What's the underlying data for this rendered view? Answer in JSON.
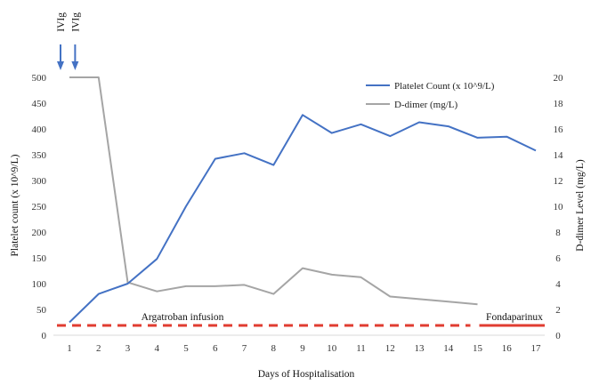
{
  "chart_data": {
    "type": "line",
    "xlabel": "Days of Hospitalisation",
    "ylabel_left": "Platelet count (x 10^9/L)",
    "ylabel_right": "D-dimer Level (mg/L)",
    "x": [
      1,
      2,
      3,
      4,
      5,
      6,
      7,
      8,
      9,
      10,
      11,
      12,
      13,
      14,
      15,
      16,
      17
    ],
    "y_left_lim": [
      0,
      500
    ],
    "y_left_ticks": [
      0,
      50,
      100,
      150,
      200,
      250,
      300,
      350,
      400,
      450,
      500
    ],
    "y_right_lim": [
      0,
      20
    ],
    "y_right_ticks": [
      0,
      2,
      4,
      6,
      8,
      10,
      12,
      14,
      16,
      18,
      20
    ],
    "grid": false,
    "legend_position": "top-right",
    "series": [
      {
        "name": "Platelet Count (x 10^9/L)",
        "axis": "left",
        "color": "#4472C4",
        "x": [
          1,
          2,
          3,
          4,
          5,
          6,
          7,
          8,
          9,
          10,
          11,
          12,
          13,
          14,
          15,
          16,
          17
        ],
        "values": [
          25,
          80,
          100,
          148,
          250,
          342,
          353,
          330,
          427,
          392,
          409,
          386,
          413,
          405,
          383,
          385,
          358
        ]
      },
      {
        "name": "D-dimer (mg/L)",
        "axis": "right",
        "color": "#A5A5A5",
        "x": [
          1,
          2,
          3,
          4,
          5,
          6,
          7,
          8,
          9,
          10,
          11,
          12,
          13,
          14,
          15
        ],
        "values": [
          20,
          20,
          4.1,
          3.4,
          3.8,
          3.8,
          3.9,
          3.2,
          5.2,
          4.7,
          4.5,
          3.0,
          2.8,
          2.6,
          2.4
        ]
      }
    ],
    "annotations": {
      "ivig": [
        {
          "label": "IVIg",
          "x": 1
        },
        {
          "label": "IVIg",
          "x": 1.5
        }
      ],
      "treatments": [
        {
          "label": "Argatroban infusion",
          "x_start": 1,
          "x_end": 15,
          "style": "dashed",
          "color": "#E03C31"
        },
        {
          "label": "Fondaparinux",
          "x_start": 15,
          "x_end": 17.5,
          "style": "solid",
          "color": "#E03C31"
        }
      ],
      "arrow_color": "#4472C4"
    }
  }
}
